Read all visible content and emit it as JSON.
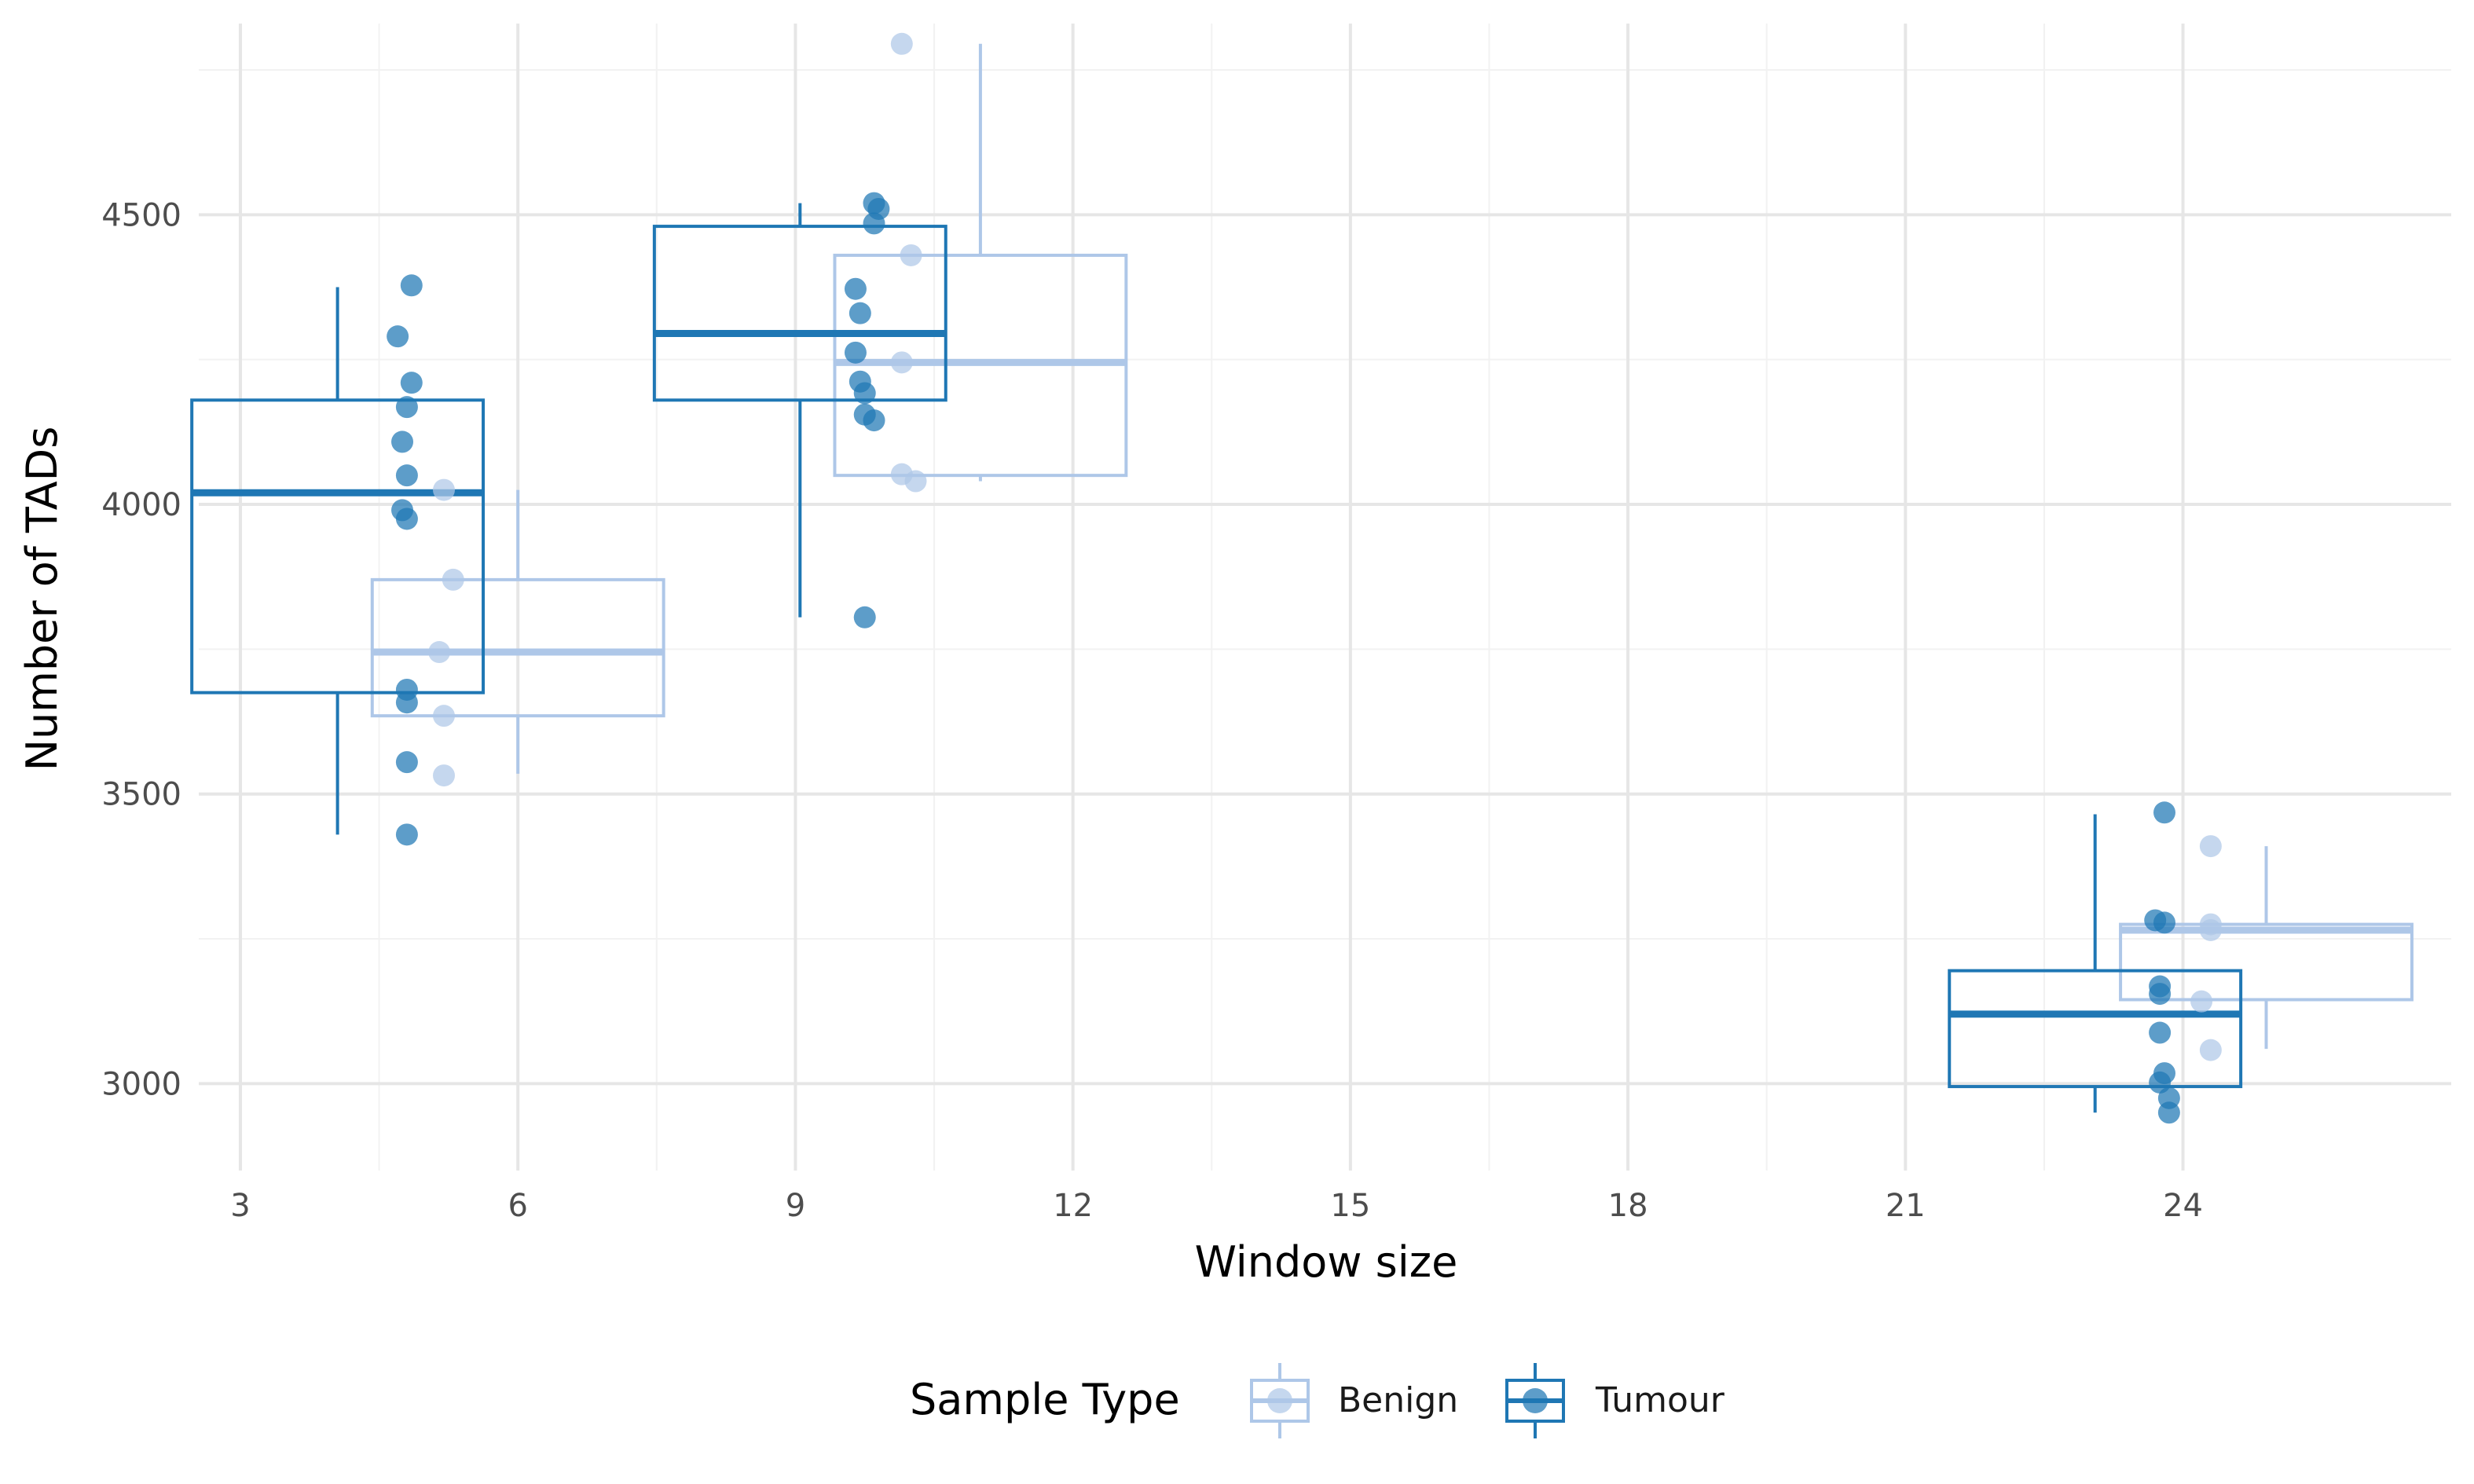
{
  "chart_data": {
    "type": "box",
    "xlabel": "Window size",
    "ylabel": "Number of TADs",
    "xlim": [
      2.55,
      26.9
    ],
    "ylim": [
      2850,
      4830
    ],
    "xticks": [
      3,
      6,
      9,
      12,
      15,
      18,
      21,
      24
    ],
    "yticks": [
      3000,
      3500,
      4000,
      4500
    ],
    "grid": true,
    "legend": {
      "title": "Sample Type",
      "position": "bottom",
      "entries": [
        "Benign",
        "Tumour"
      ]
    },
    "colors": {
      "Benign": "#aec7e8",
      "Tumour": "#1f77b4"
    },
    "series": [
      {
        "name": "Benign",
        "boxes": [
          {
            "x": 6,
            "q1": 3635,
            "median": 3745,
            "q3": 3870,
            "whisker_low": 3535,
            "whisker_high": 4025
          },
          {
            "x": 11,
            "q1": 4050,
            "median": 4245,
            "q3": 4430,
            "whisker_low": 4040,
            "whisker_high": 4795
          },
          {
            "x": 24.9,
            "q1": 3145,
            "median": 3265,
            "q3": 3275,
            "whisker_low": 3060,
            "whisker_high": 3410
          }
        ],
        "points": [
          {
            "x": 5.2,
            "y": 4025
          },
          {
            "x": 5.3,
            "y": 3870
          },
          {
            "x": 5.15,
            "y": 3745
          },
          {
            "x": 5.2,
            "y": 3635
          },
          {
            "x": 5.2,
            "y": 3532
          },
          {
            "x": 10.15,
            "y": 4795
          },
          {
            "x": 10.25,
            "y": 4430
          },
          {
            "x": 10.15,
            "y": 4245
          },
          {
            "x": 10.15,
            "y": 4052
          },
          {
            "x": 10.3,
            "y": 4040
          },
          {
            "x": 24.3,
            "y": 3410
          },
          {
            "x": 24.3,
            "y": 3275
          },
          {
            "x": 24.3,
            "y": 3265
          },
          {
            "x": 24.2,
            "y": 3142
          },
          {
            "x": 24.3,
            "y": 3058
          }
        ]
      },
      {
        "name": "Tumour",
        "boxes": [
          {
            "x": 4.05,
            "q1": 3675,
            "median": 4020,
            "q3": 4180,
            "whisker_low": 3430,
            "whisker_high": 4375
          },
          {
            "x": 9.05,
            "q1": 4180,
            "median": 4295,
            "q3": 4480,
            "whisker_low": 3805,
            "whisker_high": 4520
          },
          {
            "x": 23.05,
            "q1": 2995,
            "median": 3120,
            "q3": 3195,
            "whisker_low": 2950,
            "whisker_high": 3465
          }
        ],
        "points": [
          {
            "x": 4.85,
            "y": 4378
          },
          {
            "x": 4.7,
            "y": 4290
          },
          {
            "x": 4.85,
            "y": 4210
          },
          {
            "x": 4.8,
            "y": 4168
          },
          {
            "x": 4.75,
            "y": 4108
          },
          {
            "x": 4.8,
            "y": 4050
          },
          {
            "x": 4.75,
            "y": 3990
          },
          {
            "x": 4.8,
            "y": 3975
          },
          {
            "x": 4.8,
            "y": 3680
          },
          {
            "x": 4.8,
            "y": 3658
          },
          {
            "x": 4.8,
            "y": 3555
          },
          {
            "x": 4.8,
            "y": 3430
          },
          {
            "x": 9.85,
            "y": 4520
          },
          {
            "x": 9.9,
            "y": 4510
          },
          {
            "x": 9.85,
            "y": 4485
          },
          {
            "x": 9.65,
            "y": 4372
          },
          {
            "x": 9.7,
            "y": 4330
          },
          {
            "x": 9.65,
            "y": 4262
          },
          {
            "x": 9.7,
            "y": 4212
          },
          {
            "x": 9.75,
            "y": 4192
          },
          {
            "x": 9.75,
            "y": 4155
          },
          {
            "x": 9.85,
            "y": 4145
          },
          {
            "x": 9.75,
            "y": 3805
          },
          {
            "x": 23.8,
            "y": 3468
          },
          {
            "x": 23.7,
            "y": 3282
          },
          {
            "x": 23.8,
            "y": 3278
          },
          {
            "x": 23.75,
            "y": 3168
          },
          {
            "x": 23.75,
            "y": 3155
          },
          {
            "x": 23.75,
            "y": 3088
          },
          {
            "x": 23.8,
            "y": 3018
          },
          {
            "x": 23.75,
            "y": 3002
          },
          {
            "x": 23.85,
            "y": 2975
          },
          {
            "x": 23.85,
            "y": 2950
          }
        ]
      }
    ]
  }
}
